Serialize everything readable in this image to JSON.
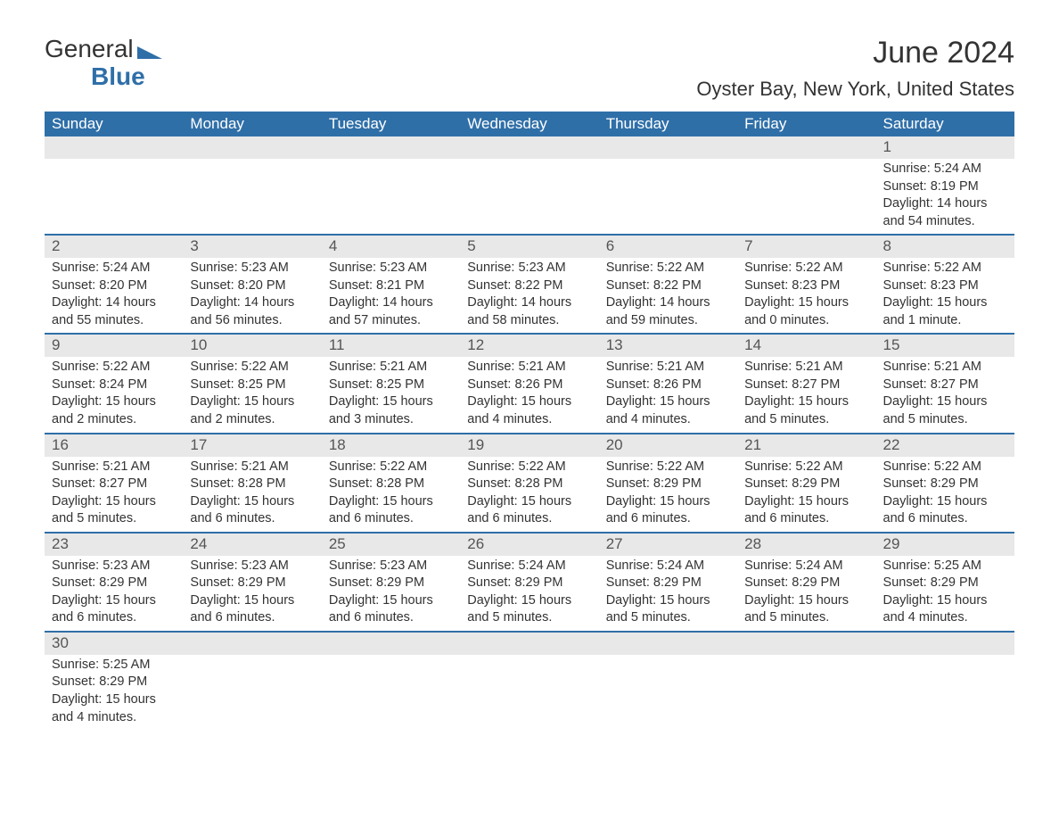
{
  "brand": {
    "name1": "General",
    "name2": "Blue"
  },
  "title": "June 2024",
  "location": "Oyster Bay, New York, United States",
  "weekdays": [
    "Sunday",
    "Monday",
    "Tuesday",
    "Wednesday",
    "Thursday",
    "Friday",
    "Saturday"
  ],
  "colors": {
    "header_bg": "#2f6fa8",
    "row_sep": "#2f6fa8",
    "daynum_bg": "#e8e8e8"
  },
  "first_weekday_index": 6,
  "days": [
    {
      "n": 1,
      "sunrise": "5:24 AM",
      "sunset": "8:19 PM",
      "daylight": "14 hours and 54 minutes."
    },
    {
      "n": 2,
      "sunrise": "5:24 AM",
      "sunset": "8:20 PM",
      "daylight": "14 hours and 55 minutes."
    },
    {
      "n": 3,
      "sunrise": "5:23 AM",
      "sunset": "8:20 PM",
      "daylight": "14 hours and 56 minutes."
    },
    {
      "n": 4,
      "sunrise": "5:23 AM",
      "sunset": "8:21 PM",
      "daylight": "14 hours and 57 minutes."
    },
    {
      "n": 5,
      "sunrise": "5:23 AM",
      "sunset": "8:22 PM",
      "daylight": "14 hours and 58 minutes."
    },
    {
      "n": 6,
      "sunrise": "5:22 AM",
      "sunset": "8:22 PM",
      "daylight": "14 hours and 59 minutes."
    },
    {
      "n": 7,
      "sunrise": "5:22 AM",
      "sunset": "8:23 PM",
      "daylight": "15 hours and 0 minutes."
    },
    {
      "n": 8,
      "sunrise": "5:22 AM",
      "sunset": "8:23 PM",
      "daylight": "15 hours and 1 minute."
    },
    {
      "n": 9,
      "sunrise": "5:22 AM",
      "sunset": "8:24 PM",
      "daylight": "15 hours and 2 minutes."
    },
    {
      "n": 10,
      "sunrise": "5:22 AM",
      "sunset": "8:25 PM",
      "daylight": "15 hours and 2 minutes."
    },
    {
      "n": 11,
      "sunrise": "5:21 AM",
      "sunset": "8:25 PM",
      "daylight": "15 hours and 3 minutes."
    },
    {
      "n": 12,
      "sunrise": "5:21 AM",
      "sunset": "8:26 PM",
      "daylight": "15 hours and 4 minutes."
    },
    {
      "n": 13,
      "sunrise": "5:21 AM",
      "sunset": "8:26 PM",
      "daylight": "15 hours and 4 minutes."
    },
    {
      "n": 14,
      "sunrise": "5:21 AM",
      "sunset": "8:27 PM",
      "daylight": "15 hours and 5 minutes."
    },
    {
      "n": 15,
      "sunrise": "5:21 AM",
      "sunset": "8:27 PM",
      "daylight": "15 hours and 5 minutes."
    },
    {
      "n": 16,
      "sunrise": "5:21 AM",
      "sunset": "8:27 PM",
      "daylight": "15 hours and 5 minutes."
    },
    {
      "n": 17,
      "sunrise": "5:21 AM",
      "sunset": "8:28 PM",
      "daylight": "15 hours and 6 minutes."
    },
    {
      "n": 18,
      "sunrise": "5:22 AM",
      "sunset": "8:28 PM",
      "daylight": "15 hours and 6 minutes."
    },
    {
      "n": 19,
      "sunrise": "5:22 AM",
      "sunset": "8:28 PM",
      "daylight": "15 hours and 6 minutes."
    },
    {
      "n": 20,
      "sunrise": "5:22 AM",
      "sunset": "8:29 PM",
      "daylight": "15 hours and 6 minutes."
    },
    {
      "n": 21,
      "sunrise": "5:22 AM",
      "sunset": "8:29 PM",
      "daylight": "15 hours and 6 minutes."
    },
    {
      "n": 22,
      "sunrise": "5:22 AM",
      "sunset": "8:29 PM",
      "daylight": "15 hours and 6 minutes."
    },
    {
      "n": 23,
      "sunrise": "5:23 AM",
      "sunset": "8:29 PM",
      "daylight": "15 hours and 6 minutes."
    },
    {
      "n": 24,
      "sunrise": "5:23 AM",
      "sunset": "8:29 PM",
      "daylight": "15 hours and 6 minutes."
    },
    {
      "n": 25,
      "sunrise": "5:23 AM",
      "sunset": "8:29 PM",
      "daylight": "15 hours and 6 minutes."
    },
    {
      "n": 26,
      "sunrise": "5:24 AM",
      "sunset": "8:29 PM",
      "daylight": "15 hours and 5 minutes."
    },
    {
      "n": 27,
      "sunrise": "5:24 AM",
      "sunset": "8:29 PM",
      "daylight": "15 hours and 5 minutes."
    },
    {
      "n": 28,
      "sunrise": "5:24 AM",
      "sunset": "8:29 PM",
      "daylight": "15 hours and 5 minutes."
    },
    {
      "n": 29,
      "sunrise": "5:25 AM",
      "sunset": "8:29 PM",
      "daylight": "15 hours and 4 minutes."
    },
    {
      "n": 30,
      "sunrise": "5:25 AM",
      "sunset": "8:29 PM",
      "daylight": "15 hours and 4 minutes."
    }
  ],
  "labels": {
    "sunrise": "Sunrise: ",
    "sunset": "Sunset: ",
    "daylight": "Daylight: "
  }
}
